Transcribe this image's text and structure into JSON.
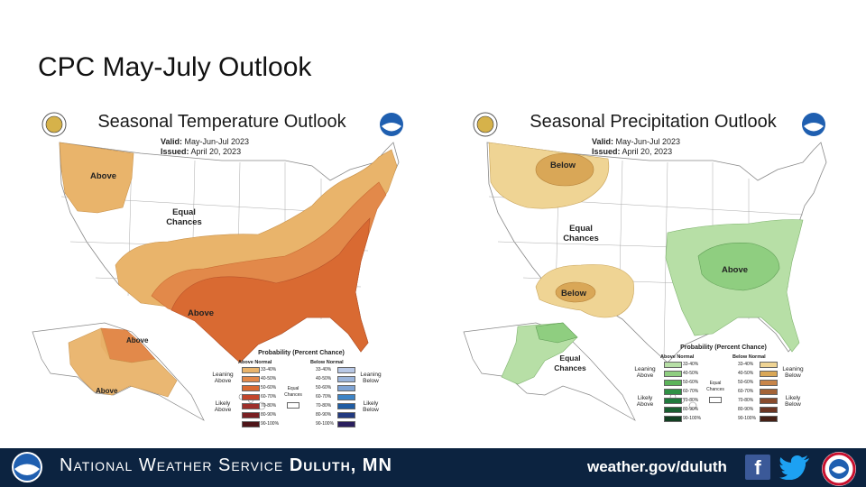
{
  "slide_title": "CPC May-July  Outlook",
  "temp_map": {
    "title": "Seasonal Temperature Outlook",
    "valid_label": "Valid:",
    "valid_value": "May-Jun-Jul 2023",
    "issued_label": "Issued:",
    "issued_value": "April 20, 2023",
    "labels": {
      "above_nw": "Above",
      "equal": "Equal Chances",
      "above_south": "Above",
      "above_ak_n": "Above",
      "above_ak_s": "Above"
    },
    "legend": {
      "title": "Probability (Percent Chance)",
      "above_head": "Above Normal",
      "below_head": "Below Normal",
      "left_top": "Leaning Above",
      "left_bottom": "Likely Above",
      "right_top": "Leaning Below",
      "right_bottom": "Likely Below",
      "middle": "Equal Chances",
      "ranges": [
        "33-40%",
        "40-50%",
        "50-60%",
        "60-70%",
        "70-80%",
        "80-90%",
        "90-100%"
      ],
      "above_colors": [
        "#e9b46b",
        "#e2894a",
        "#d96a32",
        "#c2452a",
        "#9e2f2a",
        "#7a1f22",
        "#4e1418"
      ],
      "below_colors": [
        "#b8c8e6",
        "#9ab4db",
        "#7ea3d4",
        "#3d84c6",
        "#1f5ca3",
        "#223a80",
        "#2a1f5e"
      ]
    }
  },
  "precip_map": {
    "title": "Seasonal Precipitation Outlook",
    "valid_label": "Valid:",
    "valid_value": "May-Jun-Jul 2023",
    "issued_label": "Issued:",
    "issued_value": "April 20, 2023",
    "labels": {
      "below_n": "Below",
      "equal": "Equal Chances",
      "below_sw": "Below",
      "above_se": "Above",
      "equal_ak": "Equal Chances"
    },
    "legend": {
      "title": "Probability (Percent Chance)",
      "above_head": "Above Normal",
      "below_head": "Below Normal",
      "left_top": "Leaning Above",
      "left_bottom": "Likely Above",
      "right_top": "Leaning Below",
      "right_bottom": "Likely Below",
      "middle": "Equal Chances",
      "ranges": [
        "33-40%",
        "40-50%",
        "50-60%",
        "60-70%",
        "70-80%",
        "80-90%",
        "90-100%"
      ],
      "above_colors": [
        "#b7dfa6",
        "#8fce80",
        "#5cb35a",
        "#2f9145",
        "#1f7a3c",
        "#195e30",
        "#123f22"
      ],
      "below_colors": [
        "#efd494",
        "#d9a757",
        "#c7854a",
        "#a46336",
        "#884b2c",
        "#6b3522",
        "#452015"
      ]
    },
    "colors": {
      "below_light": "#efd494",
      "below_mid": "#d9a757",
      "above_light": "#b7dfa6",
      "above_mid": "#8fce80"
    }
  },
  "footer": {
    "text_normal": "National Weather Service ",
    "text_bold": "Duluth, MN",
    "url": "weather.gov/duluth",
    "facebook": "f"
  }
}
